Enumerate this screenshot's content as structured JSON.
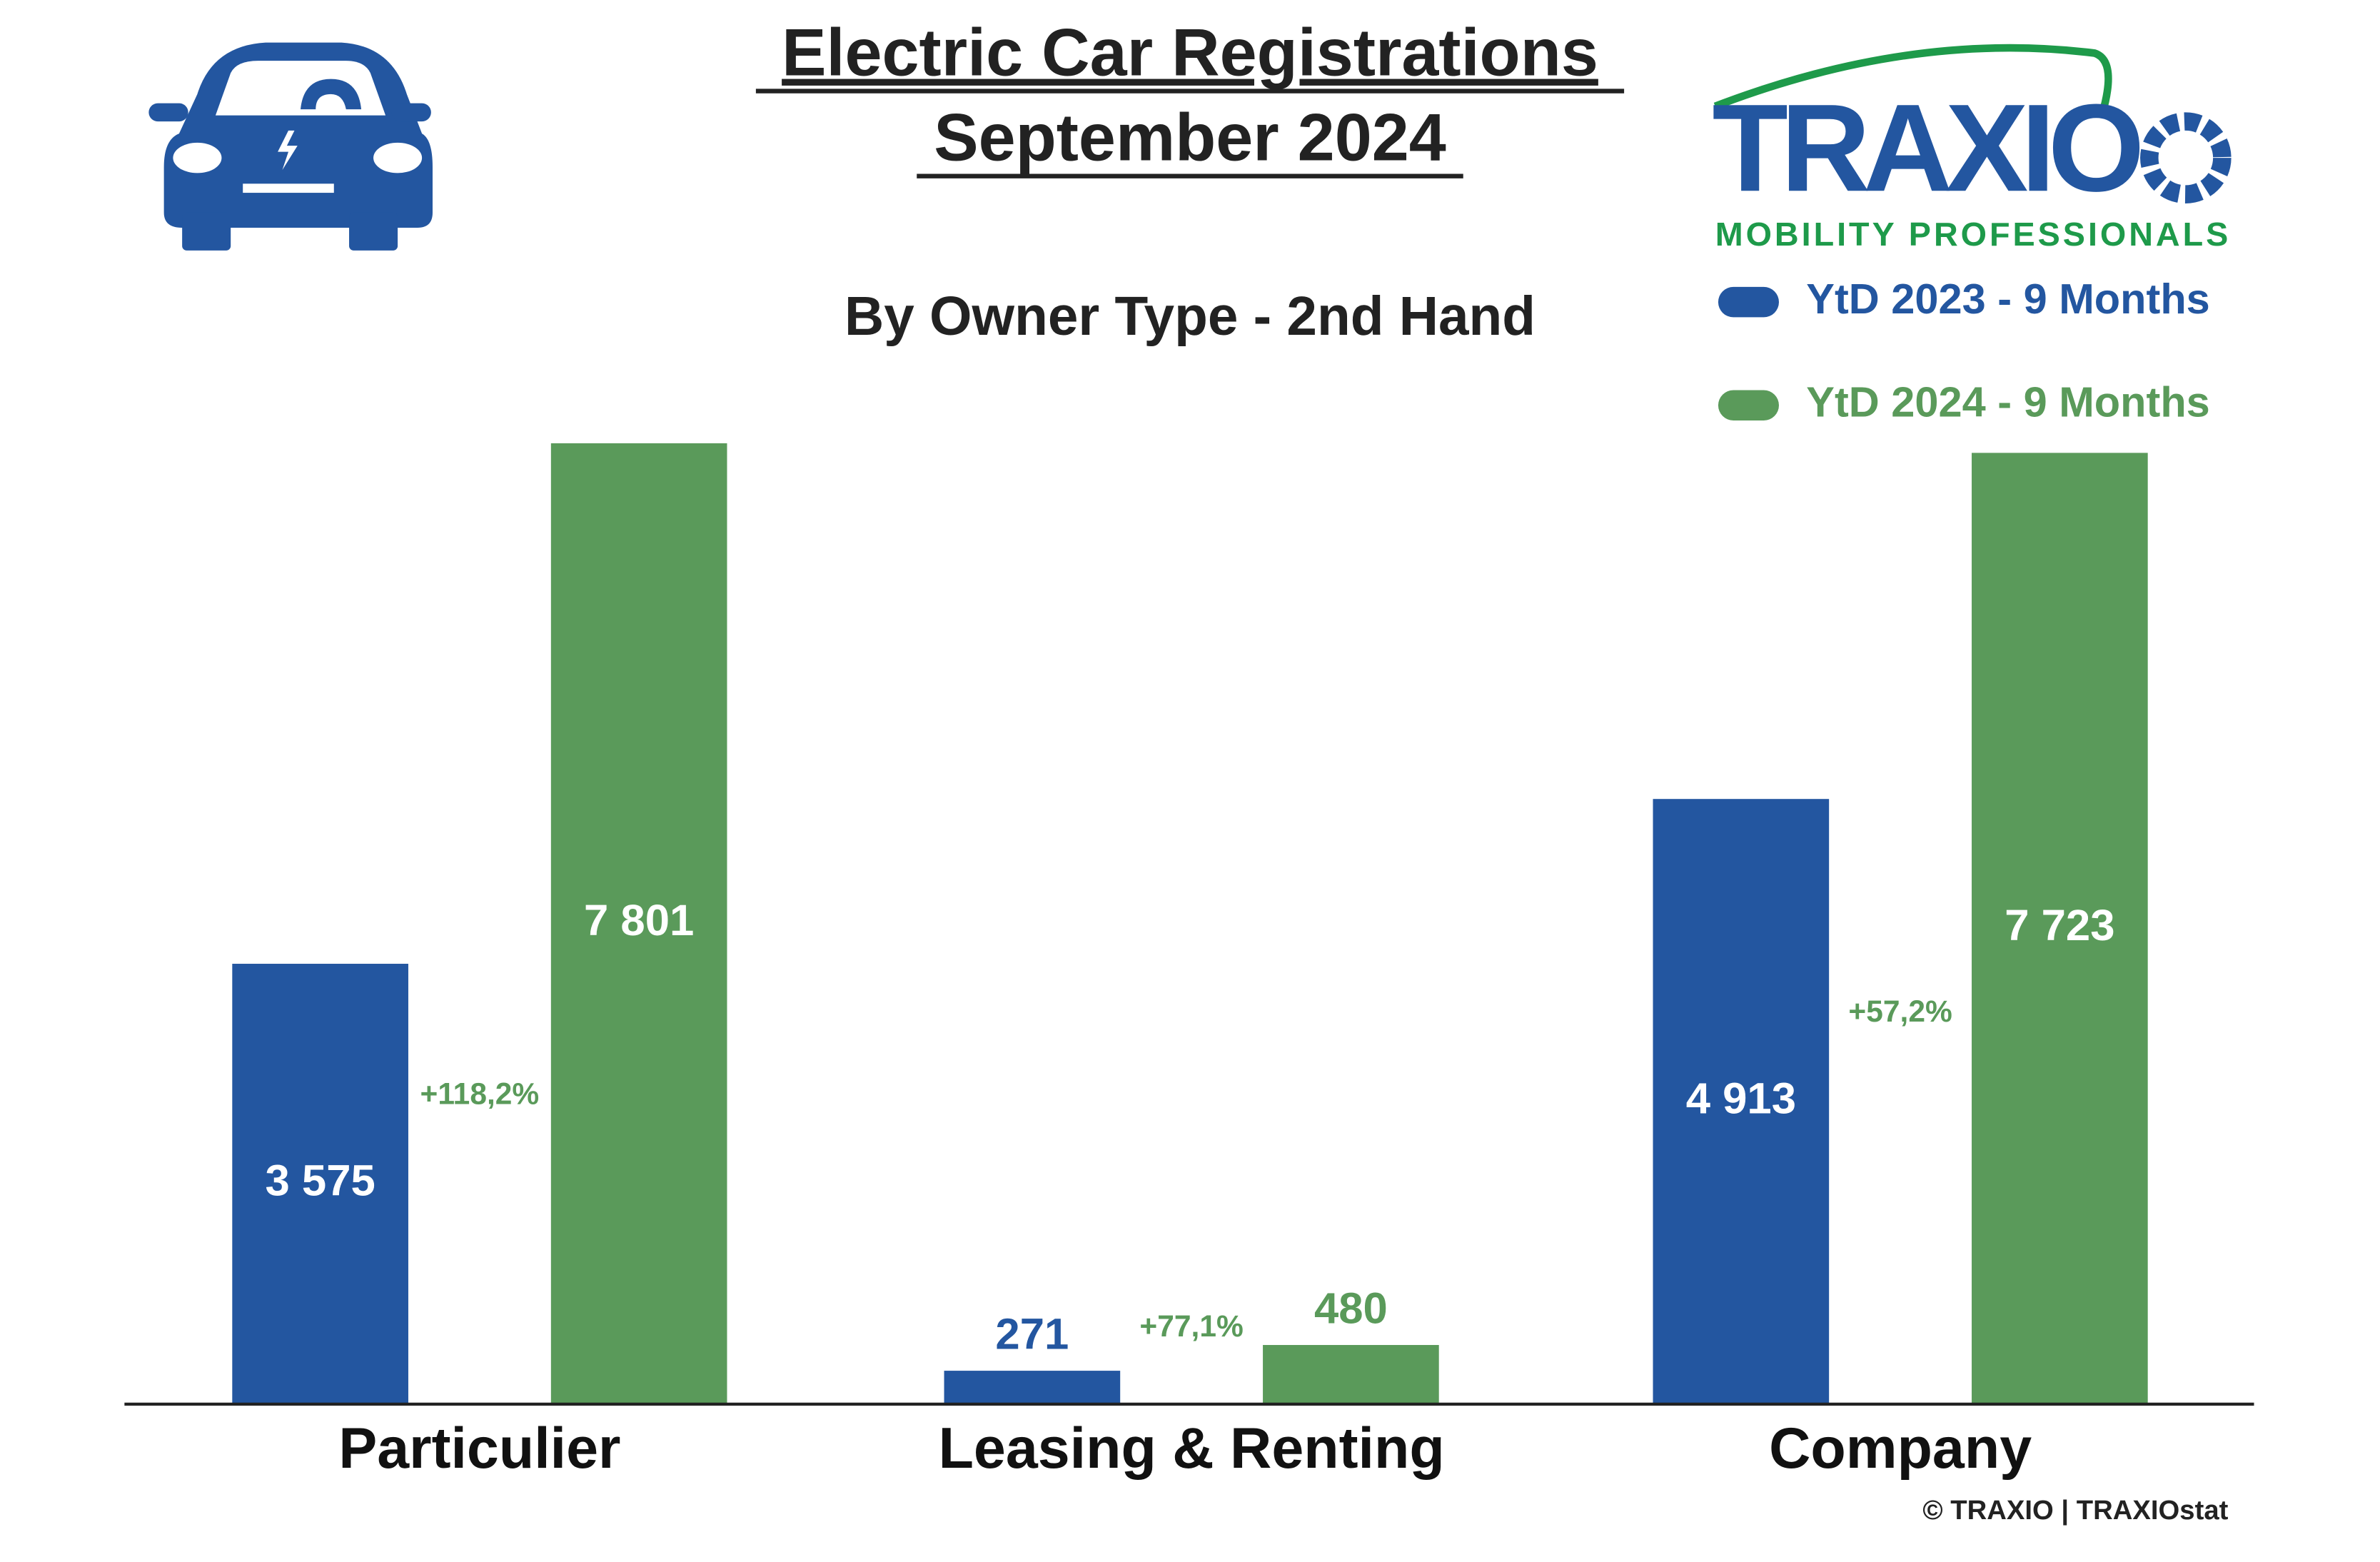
{
  "chart_data": {
    "type": "bar",
    "title": "Electric Car Registrations",
    "subtitle_date": "September 2024",
    "subtitle": "By Owner Type - 2nd Hand",
    "categories": [
      "Particulier",
      "Leasing & Renting",
      "Company"
    ],
    "series": [
      {
        "name": "YtD 2023 - 9 Months",
        "color": "#2356a0",
        "values": [
          3575,
          271,
          4913
        ],
        "value_labels": [
          "3 575",
          "271",
          "4 913"
        ]
      },
      {
        "name": "YtD 2024 - 9 Months",
        "color": "#5a9a5a",
        "values": [
          7801,
          480,
          7723
        ],
        "value_labels": [
          "7 801",
          "480",
          "7 723"
        ]
      }
    ],
    "changes": [
      "+118,2%",
      "+77,1%",
      "+57,2%"
    ],
    "logo": {
      "name": "TRAXIO",
      "tagline": "MOBILITY PROFESSIONALS"
    },
    "footer": "© TRAXIO | TRAXIOstat"
  }
}
